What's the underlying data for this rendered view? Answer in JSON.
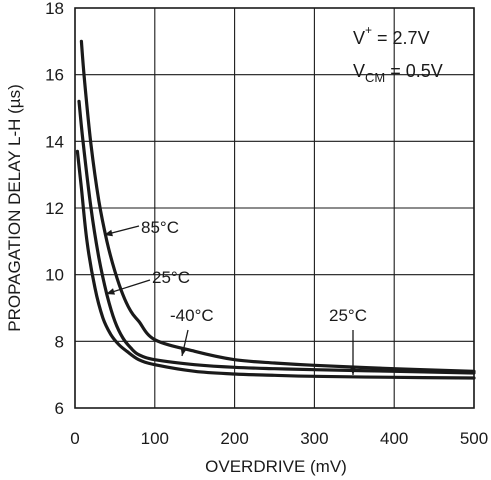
{
  "chart_data": {
    "type": "line",
    "title": "",
    "xlabel": "OVERDRIVE (mV)",
    "ylabel": "PROPAGATION DELAY L-H (µs)",
    "xlim": [
      0,
      500
    ],
    "ylim": [
      6,
      18
    ],
    "x_ticks": [
      0,
      100,
      200,
      300,
      400,
      500
    ],
    "y_ticks": [
      6,
      8,
      10,
      12,
      14,
      16,
      18
    ],
    "x_tick_labels": [
      "0",
      "100",
      "200",
      "300",
      "400",
      "500"
    ],
    "y_tick_labels": [
      "6",
      "8",
      "10",
      "12",
      "14",
      "16",
      "18"
    ],
    "grid": true,
    "legend": "none",
    "line_color": "#1a1a1a",
    "conditions": {
      "supply_base": "V",
      "supply_sup": "+",
      "supply_value": " = 2.7V",
      "vcm_base": "V",
      "vcm_sub": "CM",
      "vcm_value": " = 0.5V"
    },
    "series": [
      {
        "name": "85°C",
        "x": [
          8,
          12,
          20,
          30,
          40,
          50,
          60,
          70,
          80,
          100,
          150,
          200,
          250,
          300,
          400,
          500
        ],
        "y": [
          17.0,
          15.8,
          13.9,
          12.2,
          11.0,
          10.1,
          9.4,
          8.9,
          8.6,
          8.05,
          7.7,
          7.45,
          7.35,
          7.28,
          7.18,
          7.1
        ]
      },
      {
        "name": "25°C",
        "x": [
          5,
          10,
          20,
          30,
          40,
          50,
          60,
          70,
          80,
          100,
          150,
          200,
          250,
          300,
          400,
          500
        ],
        "y": [
          15.2,
          14.0,
          12.0,
          10.5,
          9.4,
          8.6,
          8.1,
          7.8,
          7.6,
          7.45,
          7.3,
          7.22,
          7.18,
          7.15,
          7.1,
          7.05
        ]
      },
      {
        "name": "-40°C",
        "x": [
          3,
          8,
          15,
          25,
          35,
          45,
          55,
          65,
          80,
          100,
          150,
          200,
          250,
          300,
          400,
          500
        ],
        "y": [
          13.7,
          12.6,
          11.0,
          9.6,
          8.7,
          8.2,
          7.9,
          7.7,
          7.45,
          7.3,
          7.1,
          7.02,
          6.98,
          6.95,
          6.92,
          6.9
        ]
      }
    ],
    "annotations": [
      {
        "text": "85°C",
        "target_series": 0
      },
      {
        "text": "25°C",
        "target_series": 1
      },
      {
        "text": "-40°C",
        "target_series": 2
      },
      {
        "text": "25°C",
        "target_series": 1
      }
    ]
  }
}
